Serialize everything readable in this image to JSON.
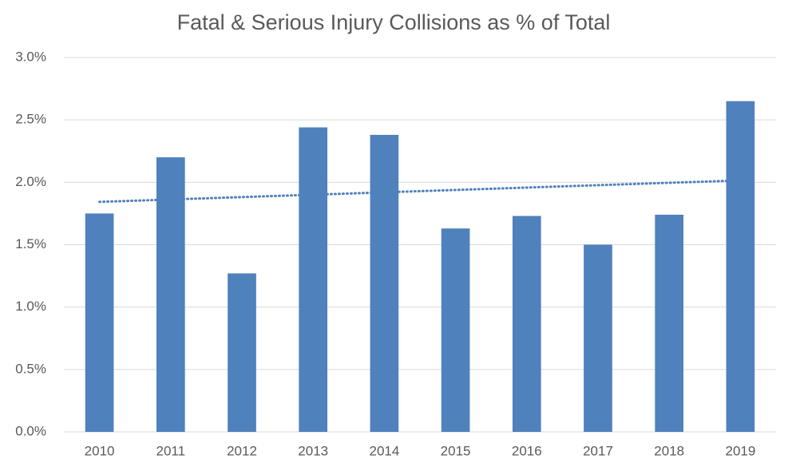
{
  "chart_data": {
    "type": "bar",
    "title": "Fatal & Serious Injury Collisions as % of Total",
    "categories": [
      "2010",
      "2011",
      "2012",
      "2013",
      "2014",
      "2015",
      "2016",
      "2017",
      "2018",
      "2019"
    ],
    "values": [
      1.75,
      2.2,
      1.27,
      2.44,
      2.38,
      1.63,
      1.73,
      1.5,
      1.74,
      2.65
    ],
    "color": "#4f81bd",
    "ylim": [
      0,
      3
    ],
    "yticks": [
      {
        "value": 0,
        "label": "0.0%"
      },
      {
        "value": 0.5,
        "label": "0.5%"
      },
      {
        "value": 1,
        "label": "1.0%"
      },
      {
        "value": 1.5,
        "label": "1.5%"
      },
      {
        "value": 2,
        "label": "2.0%"
      },
      {
        "value": 2.5,
        "label": "2.5%"
      },
      {
        "value": 3,
        "label": "3.0%"
      }
    ],
    "grid": true,
    "trendline": "linear"
  }
}
